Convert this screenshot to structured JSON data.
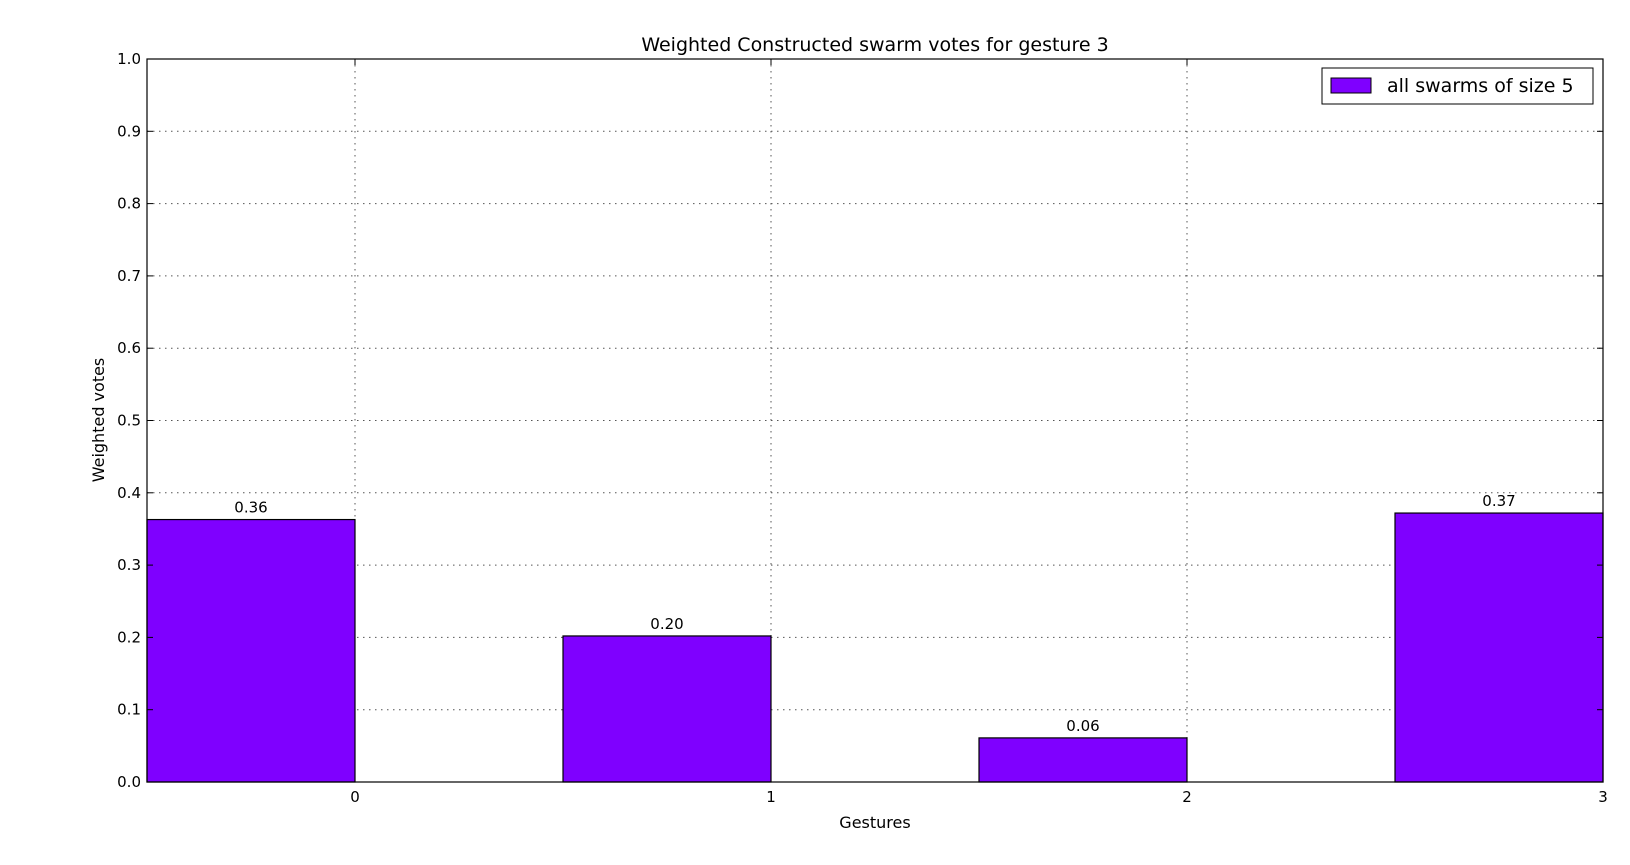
{
  "chart_data": {
    "type": "bar",
    "title": "Weighted Constructed swarm votes for gesture 3",
    "xlabel": "Gestures",
    "ylabel": "Weighted votes",
    "categories": [
      "0",
      "1",
      "2",
      "3"
    ],
    "x_ticks": [
      "0",
      "1",
      "2",
      "3"
    ],
    "xlim": [
      -0.5,
      3
    ],
    "ylim": [
      0,
      1
    ],
    "y_ticks": [
      "0.0",
      "0.1",
      "0.2",
      "0.3",
      "0.4",
      "0.5",
      "0.6",
      "0.7",
      "0.8",
      "0.9",
      "1.0"
    ],
    "series": [
      {
        "name": "all swarms of size 5",
        "color": "#7f00ff",
        "values": [
          0.363,
          0.202,
          0.061,
          0.372
        ],
        "labels": [
          "0.36",
          "0.20",
          "0.06",
          "0.37"
        ]
      }
    ],
    "grid": true,
    "legend_position": "top-right"
  }
}
